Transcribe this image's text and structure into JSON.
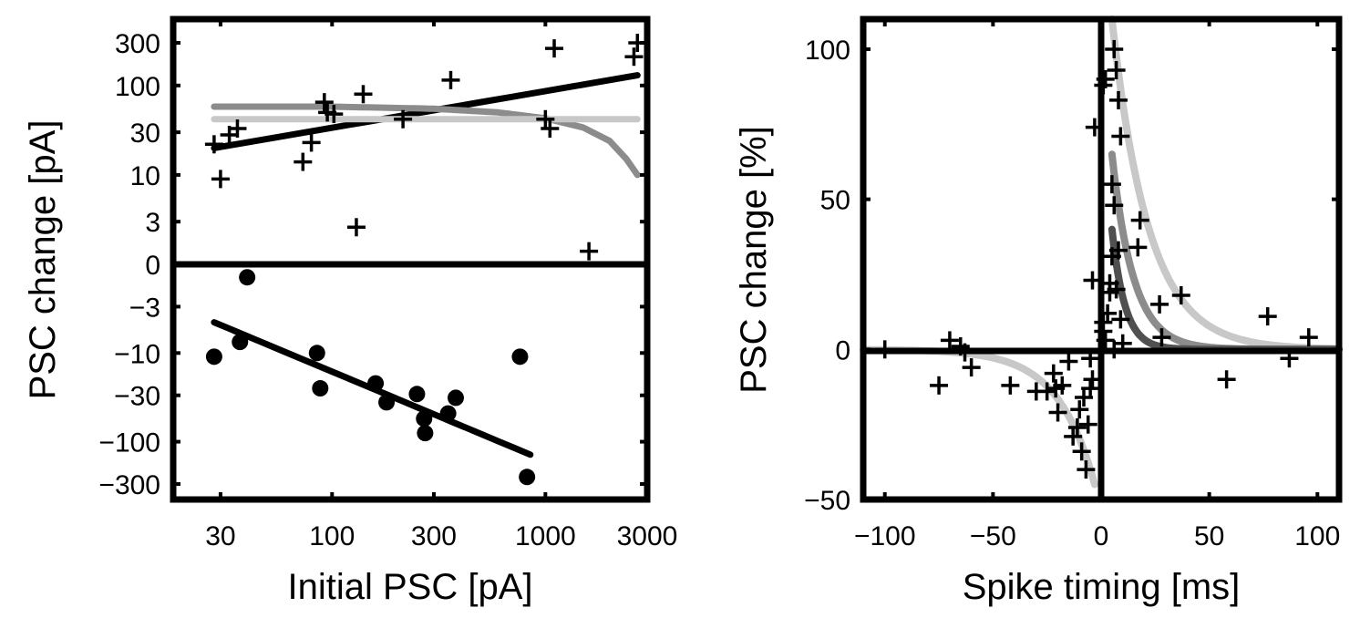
{
  "chart_data": [
    {
      "type": "scatter",
      "xlabel": "Initial PSC [pA]",
      "ylabel": "PSC change [pA]",
      "xscale": "log",
      "yscale": "symlog",
      "xlim": [
        18,
        3000
      ],
      "x_ticks": [
        {
          "value": 30,
          "label": "30"
        },
        {
          "value": 100,
          "label": "100"
        },
        {
          "value": 300,
          "label": "300"
        },
        {
          "value": 1000,
          "label": "1000"
        },
        {
          "value": 3000,
          "label": "3000"
        }
      ],
      "y_ticks": [
        {
          "value": 300,
          "label": "300"
        },
        {
          "value": 100,
          "label": "100"
        },
        {
          "value": 30,
          "label": "30"
        },
        {
          "value": 10,
          "label": "10"
        },
        {
          "value": 3,
          "label": "3"
        },
        {
          "value": 0,
          "label": "0"
        },
        {
          "value": -3,
          "label": "−3"
        },
        {
          "value": -10,
          "label": "−10"
        },
        {
          "value": -30,
          "label": "−30"
        },
        {
          "value": -100,
          "label": "−100"
        },
        {
          "value": -300,
          "label": "−300"
        }
      ],
      "potentiation_points": [
        {
          "x": 28,
          "y": 22
        },
        {
          "x": 30,
          "y": 9
        },
        {
          "x": 33,
          "y": 28
        },
        {
          "x": 36,
          "y": 33
        },
        {
          "x": 73,
          "y": 14
        },
        {
          "x": 80,
          "y": 23
        },
        {
          "x": 92,
          "y": 65
        },
        {
          "x": 95,
          "y": 50
        },
        {
          "x": 102,
          "y": 48
        },
        {
          "x": 130,
          "y": 2.6
        },
        {
          "x": 140,
          "y": 80
        },
        {
          "x": 215,
          "y": 42
        },
        {
          "x": 360,
          "y": 115
        },
        {
          "x": 1000,
          "y": 42
        },
        {
          "x": 1050,
          "y": 33
        },
        {
          "x": 1100,
          "y": 260
        },
        {
          "x": 1600,
          "y": 1.4
        },
        {
          "x": 2600,
          "y": 210
        },
        {
          "x": 2700,
          "y": 300
        }
      ],
      "depression_points": [
        {
          "x": 28,
          "y": -11
        },
        {
          "x": 37,
          "y": -7.5
        },
        {
          "x": 40,
          "y": -1.4
        },
        {
          "x": 85,
          "y": -10
        },
        {
          "x": 88,
          "y": -25
        },
        {
          "x": 160,
          "y": -22
        },
        {
          "x": 180,
          "y": -36
        },
        {
          "x": 250,
          "y": -29
        },
        {
          "x": 270,
          "y": -55
        },
        {
          "x": 273,
          "y": -80
        },
        {
          "x": 350,
          "y": -48
        },
        {
          "x": 380,
          "y": -32
        },
        {
          "x": 760,
          "y": -11
        },
        {
          "x": 820,
          "y": -250
        }
      ],
      "fit_lines": [
        {
          "color": "#000000",
          "points": [
            {
              "x": 28,
              "y": 20
            },
            {
              "x": 2700,
              "y": 130
            }
          ]
        },
        {
          "color": "#000000",
          "points": [
            {
              "x": 28,
              "y": -4.5
            },
            {
              "x": 850,
              "y": -140
            }
          ]
        },
        {
          "color": "#8c8c8c",
          "points": [
            {
              "x": 28,
              "y": 58
            },
            {
              "x": 100,
              "y": 58
            },
            {
              "x": 300,
              "y": 55
            },
            {
              "x": 600,
              "y": 50
            },
            {
              "x": 1000,
              "y": 43
            },
            {
              "x": 1500,
              "y": 34
            },
            {
              "x": 2000,
              "y": 24
            },
            {
              "x": 2400,
              "y": 15
            },
            {
              "x": 2700,
              "y": 10
            }
          ]
        },
        {
          "color": "#c8c8c8",
          "points": [
            {
              "x": 28,
              "y": 42
            },
            {
              "x": 2700,
              "y": 42
            }
          ]
        }
      ],
      "marker_styles": {
        "potentiation": "plus",
        "depression": "filled-circle"
      },
      "grid": false,
      "colors": {
        "data": "#000000",
        "fit_dark": "#8c8c8c",
        "fit_light": "#c8c8c8"
      }
    },
    {
      "type": "scatter",
      "xlabel": "Spike timing [ms]",
      "ylabel": "PSC change [%]",
      "xlim": [
        -110,
        110
      ],
      "ylim": [
        -50,
        110
      ],
      "x_ticks": [
        {
          "value": -100,
          "label": "−100"
        },
        {
          "value": -50,
          "label": "−50"
        },
        {
          "value": 0,
          "label": "0"
        },
        {
          "value": 50,
          "label": "50"
        },
        {
          "value": 100,
          "label": "100"
        }
      ],
      "y_ticks": [
        {
          "value": -50,
          "label": "−50"
        },
        {
          "value": 0,
          "label": "0"
        },
        {
          "value": 50,
          "label": "50"
        },
        {
          "value": 100,
          "label": "100"
        }
      ],
      "points": [
        {
          "x": -100,
          "y": 0
        },
        {
          "x": -75,
          "y": -12
        },
        {
          "x": -70,
          "y": 3
        },
        {
          "x": -65,
          "y": 1
        },
        {
          "x": -63,
          "y": -1
        },
        {
          "x": -60,
          "y": -6
        },
        {
          "x": -42,
          "y": -12
        },
        {
          "x": -30,
          "y": -14
        },
        {
          "x": -25,
          "y": -14
        },
        {
          "x": -22,
          "y": -8
        },
        {
          "x": -21,
          "y": -13
        },
        {
          "x": -20,
          "y": -21
        },
        {
          "x": -18,
          "y": -12
        },
        {
          "x": -15,
          "y": -4
        },
        {
          "x": -13,
          "y": -29
        },
        {
          "x": -11,
          "y": -26
        },
        {
          "x": -10,
          "y": -20
        },
        {
          "x": -9,
          "y": -34
        },
        {
          "x": -8,
          "y": -16
        },
        {
          "x": -7,
          "y": -40
        },
        {
          "x": -6,
          "y": -25
        },
        {
          "x": -5,
          "y": -3
        },
        {
          "x": -5,
          "y": -13
        },
        {
          "x": -4,
          "y": -10
        },
        {
          "x": -3,
          "y": 74
        },
        {
          "x": -4,
          "y": 23
        },
        {
          "x": 1,
          "y": 88
        },
        {
          "x": 2,
          "y": 90
        },
        {
          "x": 1,
          "y": 6
        },
        {
          "x": 1,
          "y": 9
        },
        {
          "x": 2,
          "y": 3
        },
        {
          "x": 3,
          "y": 12
        },
        {
          "x": 4,
          "y": 19
        },
        {
          "x": 4,
          "y": 22
        },
        {
          "x": 5,
          "y": 31
        },
        {
          "x": 5,
          "y": 55
        },
        {
          "x": 6,
          "y": 100
        },
        {
          "x": 6,
          "y": 48
        },
        {
          "x": 7,
          "y": 93
        },
        {
          "x": 7,
          "y": 20
        },
        {
          "x": 8,
          "y": 83
        },
        {
          "x": 8,
          "y": 33
        },
        {
          "x": 9,
          "y": 71
        },
        {
          "x": 9,
          "y": 10
        },
        {
          "x": 6,
          "y": 0
        },
        {
          "x": 10,
          "y": 2
        },
        {
          "x": 17,
          "y": 34
        },
        {
          "x": 18,
          "y": 43
        },
        {
          "x": 27,
          "y": 15
        },
        {
          "x": 28,
          "y": 4
        },
        {
          "x": 37,
          "y": 18
        },
        {
          "x": 58,
          "y": -10
        },
        {
          "x": 77,
          "y": 11
        },
        {
          "x": 87,
          "y": -3
        },
        {
          "x": 96,
          "y": 4
        }
      ],
      "fit_curves": [
        {
          "color": "#c8c8c8",
          "amplitude": 110,
          "tau": 17,
          "domain": [
            5,
            110
          ]
        },
        {
          "color": "#8c8c8c",
          "amplitude": 65,
          "tau": 10,
          "domain": [
            5,
            110
          ]
        },
        {
          "color": "#505050",
          "amplitude": 40,
          "tau": 6,
          "domain": [
            5,
            110
          ]
        },
        {
          "color": "#c8c8c8",
          "amplitude": -45,
          "tau": 17,
          "domain": [
            -110,
            -3
          ]
        }
      ],
      "reference_lines": {
        "x": 0,
        "y": 0
      },
      "marker_style": "plus",
      "grid": false
    }
  ]
}
